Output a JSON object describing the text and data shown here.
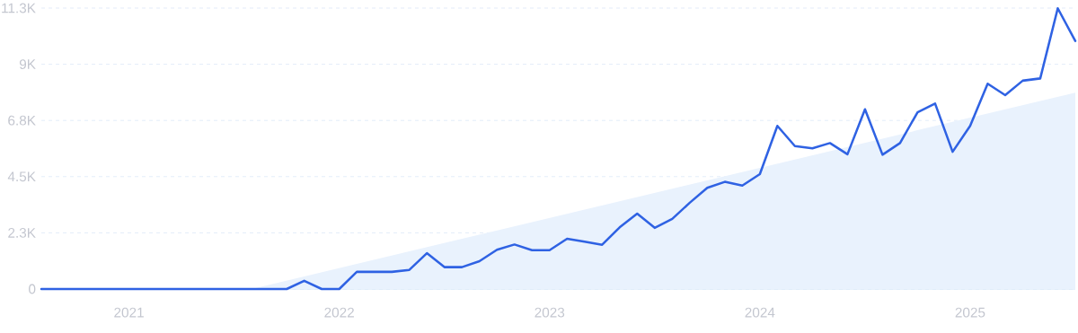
{
  "chart_data": {
    "type": "line",
    "x": [
      "2020-08",
      "2020-09",
      "2020-10",
      "2020-11",
      "2020-12",
      "2021-01",
      "2021-02",
      "2021-03",
      "2021-04",
      "2021-05",
      "2021-06",
      "2021-07",
      "2021-08",
      "2021-09",
      "2021-10",
      "2021-11",
      "2021-12",
      "2022-01",
      "2022-02",
      "2022-03",
      "2022-04",
      "2022-05",
      "2022-06",
      "2022-07",
      "2022-08",
      "2022-09",
      "2022-10",
      "2022-11",
      "2022-12",
      "2023-01",
      "2023-02",
      "2023-03",
      "2023-04",
      "2023-05",
      "2023-06",
      "2023-07",
      "2023-08",
      "2023-09",
      "2023-10",
      "2023-11",
      "2023-12",
      "2024-01",
      "2024-02",
      "2024-03",
      "2024-04",
      "2024-05",
      "2024-06",
      "2024-07",
      "2024-08",
      "2024-09",
      "2024-10",
      "2024-11",
      "2024-12",
      "2025-01",
      "2025-02",
      "2025-03",
      "2025-04",
      "2025-05",
      "2025-06",
      "2025-07"
    ],
    "series": [
      {
        "type": "area",
        "color": "#e9f2fd",
        "x": [
          "2021-08",
          "2025-07"
        ],
        "values": [
          0,
          7900
        ]
      },
      {
        "color": "#2f62e3",
        "values": [
          0,
          0,
          0,
          0,
          0,
          0,
          0,
          0,
          0,
          0,
          0,
          0,
          0,
          0,
          0,
          330,
          0,
          0,
          690,
          690,
          690,
          770,
          1440,
          880,
          880,
          1120,
          1580,
          1790,
          1560,
          1560,
          2020,
          1900,
          1780,
          2480,
          3030,
          2460,
          2820,
          3470,
          4070,
          4310,
          4160,
          4620,
          6560,
          5750,
          5660,
          5870,
          5420,
          7230,
          5400,
          5870,
          7110,
          7460,
          5520,
          6560,
          8260,
          7800,
          8380,
          8470,
          11290,
          9980
        ]
      }
    ],
    "xlim": [
      "2020-08",
      "2025-07"
    ],
    "xticks": [
      "2021",
      "2022",
      "2023",
      "2024",
      "2025"
    ],
    "ylim": [
      0,
      11300
    ],
    "yticks": [
      {
        "value": 0,
        "label": "0"
      },
      {
        "value": 2260,
        "label": "2.3K"
      },
      {
        "value": 4520,
        "label": "4.5K"
      },
      {
        "value": 6780,
        "label": "6.8K"
      },
      {
        "value": 9040,
        "label": "9K"
      },
      {
        "value": 11300,
        "label": "11.3K"
      }
    ],
    "grid": "y"
  }
}
